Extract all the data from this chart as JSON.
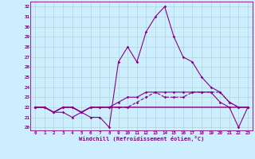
{
  "xlabel": "Windchill (Refroidissement éolien,°C)",
  "bg_color": "#cceeff",
  "line_color": "#880088",
  "grid_color": "#aacccc",
  "xlim": [
    -0.5,
    23.5
  ],
  "ylim": [
    19.7,
    32.5
  ],
  "yticks": [
    20,
    21,
    22,
    23,
    24,
    25,
    26,
    27,
    28,
    29,
    30,
    31,
    32
  ],
  "xticks": [
    0,
    1,
    2,
    3,
    4,
    5,
    6,
    7,
    8,
    9,
    10,
    11,
    12,
    13,
    14,
    15,
    16,
    17,
    18,
    19,
    20,
    21,
    22,
    23
  ],
  "hours": [
    0,
    1,
    2,
    3,
    4,
    5,
    6,
    7,
    8,
    9,
    10,
    11,
    12,
    13,
    14,
    15,
    16,
    17,
    18,
    19,
    20,
    21,
    22,
    23
  ],
  "line1": [
    22,
    22,
    21.5,
    21.5,
    21,
    21.5,
    21,
    21,
    20,
    26.5,
    28,
    26.5,
    29.5,
    31,
    32,
    29,
    27,
    26.5,
    25,
    24,
    23.5,
    22.5,
    22,
    22
  ],
  "line2": [
    22,
    22,
    21.5,
    22,
    22,
    21.5,
    22,
    22,
    22,
    22.5,
    23,
    23,
    23.5,
    23.5,
    23.5,
    23.5,
    23.5,
    23.5,
    23.5,
    23.5,
    22.5,
    22,
    20,
    22
  ],
  "line3": [
    22,
    22,
    21.5,
    22,
    22,
    21.5,
    22,
    22,
    22,
    22,
    22,
    22,
    22,
    22,
    22,
    22,
    22,
    22,
    22,
    22,
    22,
    22,
    22,
    22
  ],
  "line4": [
    22,
    22,
    21.5,
    22,
    22,
    21.5,
    22,
    22,
    22,
    22,
    22,
    22.5,
    23,
    23.5,
    23,
    23,
    23,
    23.5,
    23.5,
    23.5,
    23.5,
    22.5,
    22,
    22
  ]
}
